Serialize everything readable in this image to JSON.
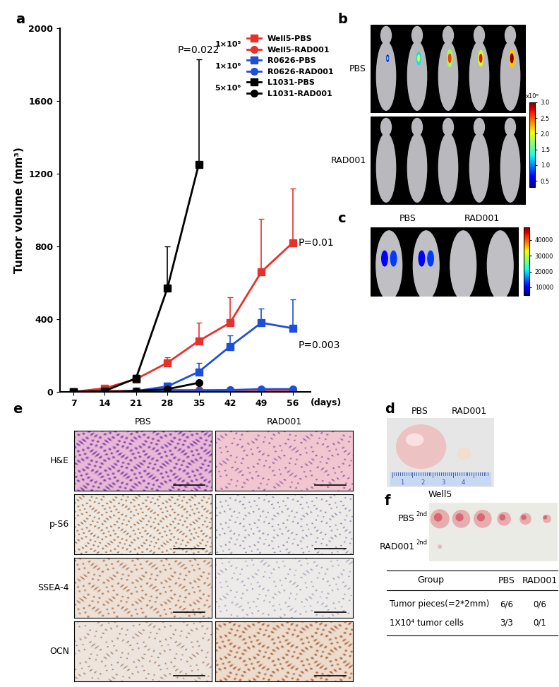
{
  "chart_data": {
    "type": "line",
    "xlabel": "(days)",
    "ylabel": "Tumor volume (mm³)",
    "x": [
      7,
      14,
      21,
      28,
      35,
      42,
      49,
      56
    ],
    "xlim": [
      4,
      60
    ],
    "xticks": [
      7,
      14,
      21,
      28,
      35,
      42,
      49,
      56
    ],
    "ylim": [
      0,
      2000
    ],
    "yticks": [
      0,
      400,
      800,
      1200,
      1600,
      2000
    ],
    "legend": "upper right",
    "series": [
      {
        "name": "Well5-PBS",
        "color": "#e8312a",
        "marker": "square",
        "group": "1×10⁵",
        "p_value": "P=0.01",
        "values": [
          0,
          20,
          70,
          160,
          280,
          380,
          660,
          820
        ],
        "errors": [
          0,
          5,
          10,
          30,
          100,
          140,
          290,
          300
        ]
      },
      {
        "name": "Well5-RAD001",
        "color": "#e8312a",
        "marker": "circle",
        "group": "1×10⁵",
        "values": [
          0,
          5,
          5,
          10,
          10,
          10,
          10,
          10
        ]
      },
      {
        "name": "R0626-PBS",
        "color": "#1f4fd8",
        "marker": "square",
        "group": "1×10⁶",
        "p_value": "P=0.003",
        "values": [
          0,
          0,
          5,
          30,
          110,
          250,
          380,
          350
        ],
        "errors": [
          0,
          0,
          5,
          20,
          50,
          60,
          80,
          160
        ]
      },
      {
        "name": "R0626-RAD001",
        "color": "#1f4fd8",
        "marker": "circle",
        "group": "1×10⁶",
        "values": [
          0,
          0,
          0,
          5,
          5,
          10,
          15,
          15
        ]
      },
      {
        "name": "L1031-PBS",
        "color": "#000000",
        "marker": "square",
        "group": "5×10⁶",
        "p_value": "P=0.022",
        "values": [
          0,
          5,
          75,
          570,
          1250,
          null,
          null,
          null
        ],
        "errors": [
          0,
          2,
          20,
          230,
          580,
          null,
          null,
          null
        ]
      },
      {
        "name": "L1031-RAD001",
        "color": "#000000",
        "marker": "circle",
        "group": "5×10⁶",
        "values": [
          0,
          0,
          5,
          15,
          50,
          null,
          null,
          null
        ]
      }
    ]
  },
  "panels": {
    "labels": [
      "a",
      "b",
      "c",
      "d",
      "e",
      "f"
    ],
    "b": {
      "rows": [
        "PBS",
        "RAD001"
      ],
      "colorbar": {
        "range": [
          0.3,
          3.0
        ],
        "ticks": [
          0.5,
          1.0,
          1.5,
          2.0,
          2.5,
          3.0
        ],
        "label": "x10⁶"
      }
    },
    "c": {
      "columns": [
        "PBS",
        "RAD001"
      ],
      "colorbar": {
        "range": [
          5000,
          48000
        ],
        "ticks": [
          10000,
          20000,
          30000,
          40000
        ]
      }
    },
    "d": {
      "columns": [
        "PBS",
        "RAD001"
      ],
      "caption": "Well5",
      "ruler": [
        1,
        2,
        3,
        4
      ]
    },
    "e": {
      "columns": [
        "PBS",
        "RAD001"
      ],
      "rows": [
        "H&E",
        "p-S6",
        "SSEA-4",
        "OCN"
      ]
    },
    "f": {
      "rows": [
        {
          "label": "PBS",
          "superscript": "2nd"
        },
        {
          "label": "RAD001",
          "superscript": "2nd"
        }
      ],
      "table": {
        "header": [
          "Group",
          "PBS",
          "RAD001"
        ],
        "rows": [
          [
            "Tumor pieces(=2*2mm)",
            "6/6",
            "0/6"
          ],
          [
            "1X10⁴ tumor cells",
            "3/3",
            "0/1"
          ]
        ]
      }
    }
  }
}
